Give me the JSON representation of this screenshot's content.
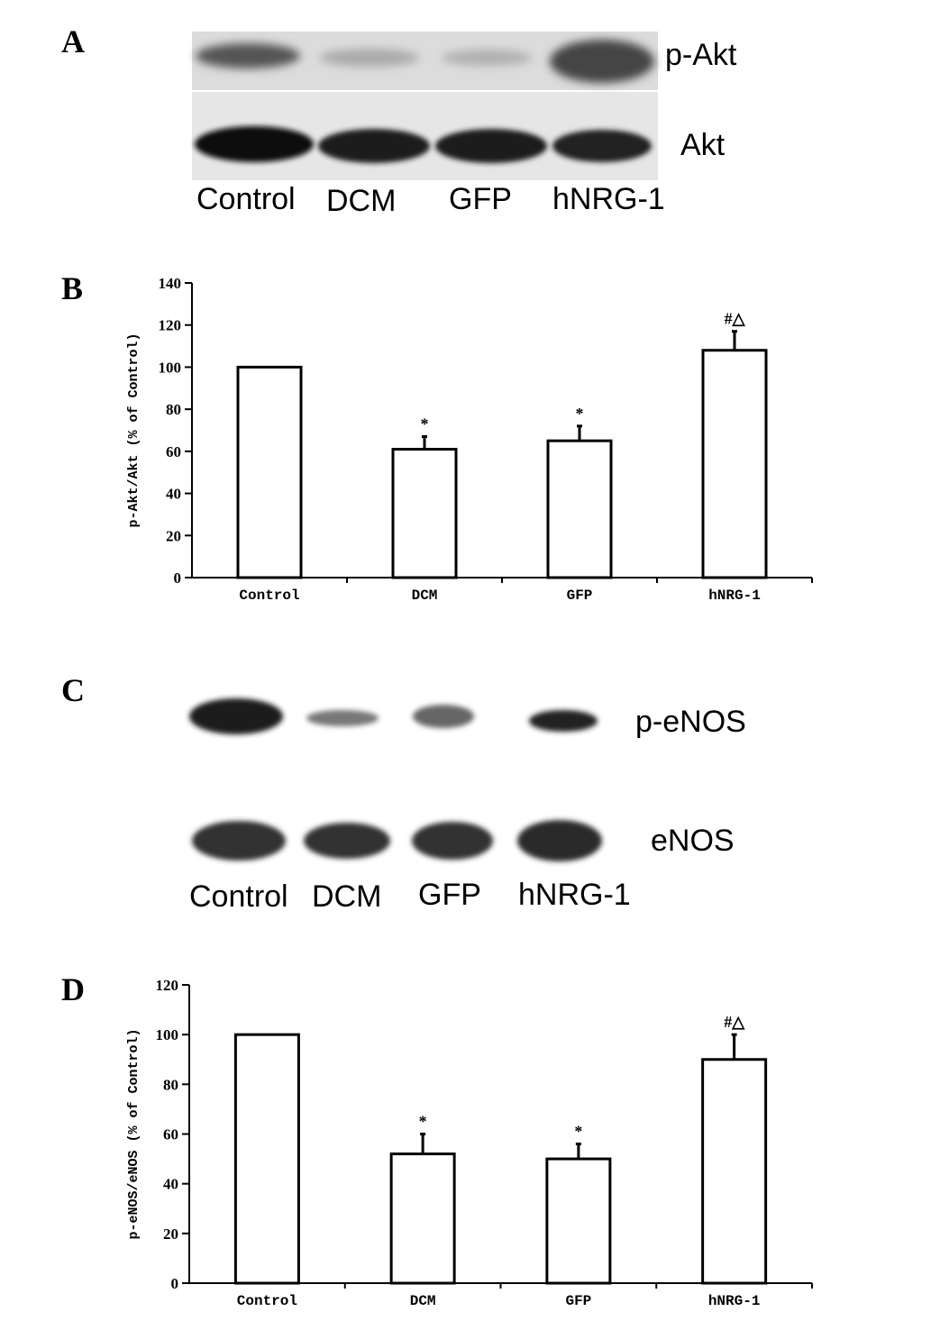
{
  "panel_labels": [
    "A",
    "B",
    "C",
    "D"
  ],
  "blots": [
    {
      "rows": [
        "p-Akt",
        "Akt"
      ],
      "lanes": [
        "Control",
        "DCM",
        "GFP",
        "hNRG-1"
      ]
    },
    {
      "rows": [
        "p-eNOS",
        "eNOS"
      ],
      "lanes": [
        "Control",
        "DCM",
        "GFP",
        "hNRG-1"
      ]
    }
  ],
  "chart_data": [
    {
      "type": "bar",
      "y_label": "p-Akt/Akt (% of Control)",
      "categories": [
        "Control",
        "DCM",
        "GFP",
        "hNRG-1"
      ],
      "values": [
        100,
        61,
        65,
        108
      ],
      "errors": [
        null,
        6,
        7,
        9
      ],
      "annotations": [
        null,
        "*",
        "*",
        "#△"
      ],
      "color": "#ffffff",
      "edge_color": "#000000",
      "ylim": [
        0,
        140
      ],
      "yticks": [
        0,
        20,
        40,
        60,
        80,
        100,
        120,
        140
      ],
      "grid": false
    },
    {
      "type": "bar",
      "y_label": "p-eNOS/eNOS (% of Control)",
      "categories": [
        "Control",
        "DCM",
        "GFP",
        "hNRG-1"
      ],
      "values": [
        100,
        52,
        50,
        90
      ],
      "errors": [
        null,
        8,
        6,
        10
      ],
      "annotations": [
        null,
        "*",
        "*",
        "#△"
      ],
      "color": "#ffffff",
      "edge_color": "#000000",
      "ylim": [
        0,
        120
      ],
      "yticks": [
        0,
        20,
        40,
        60,
        80,
        100,
        120
      ],
      "grid": false
    }
  ]
}
